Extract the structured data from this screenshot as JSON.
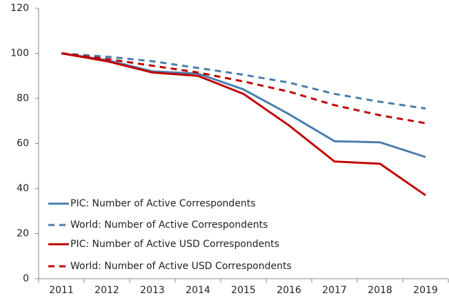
{
  "chart_data": {
    "type": "line",
    "categories": [
      "2011",
      "2012",
      "2013",
      "2014",
      "2015",
      "2016",
      "2017",
      "2018",
      "2019"
    ],
    "series": [
      {
        "name": "PIC: Number of Active Correspondents",
        "color": "#4a7ead",
        "dash": false,
        "values": [
          100,
          97,
          92,
          91,
          84,
          73,
          61,
          60.5,
          54
        ]
      },
      {
        "name": "World: Number of Active Correspondents",
        "color": "#4a7ead",
        "dash": true,
        "values": [
          100,
          98.5,
          96.5,
          93.5,
          90.5,
          87,
          82,
          78.5,
          75.5
        ]
      },
      {
        "name": "PIC: Number of Active USD Correspondents",
        "color": "#c00000",
        "dash": false,
        "values": [
          100,
          96.5,
          91.5,
          90,
          82,
          68,
          52,
          51,
          37
        ]
      },
      {
        "name": "World: Number of Active USD Correspondents",
        "color": "#c00000",
        "dash": true,
        "values": [
          100,
          97.5,
          94.5,
          91.5,
          87.5,
          83,
          77,
          72.5,
          69
        ]
      }
    ],
    "ylim": [
      0,
      120
    ],
    "yticks": [
      0,
      20,
      40,
      60,
      80,
      100,
      120
    ],
    "grid": false,
    "legend": "lower-left"
  }
}
